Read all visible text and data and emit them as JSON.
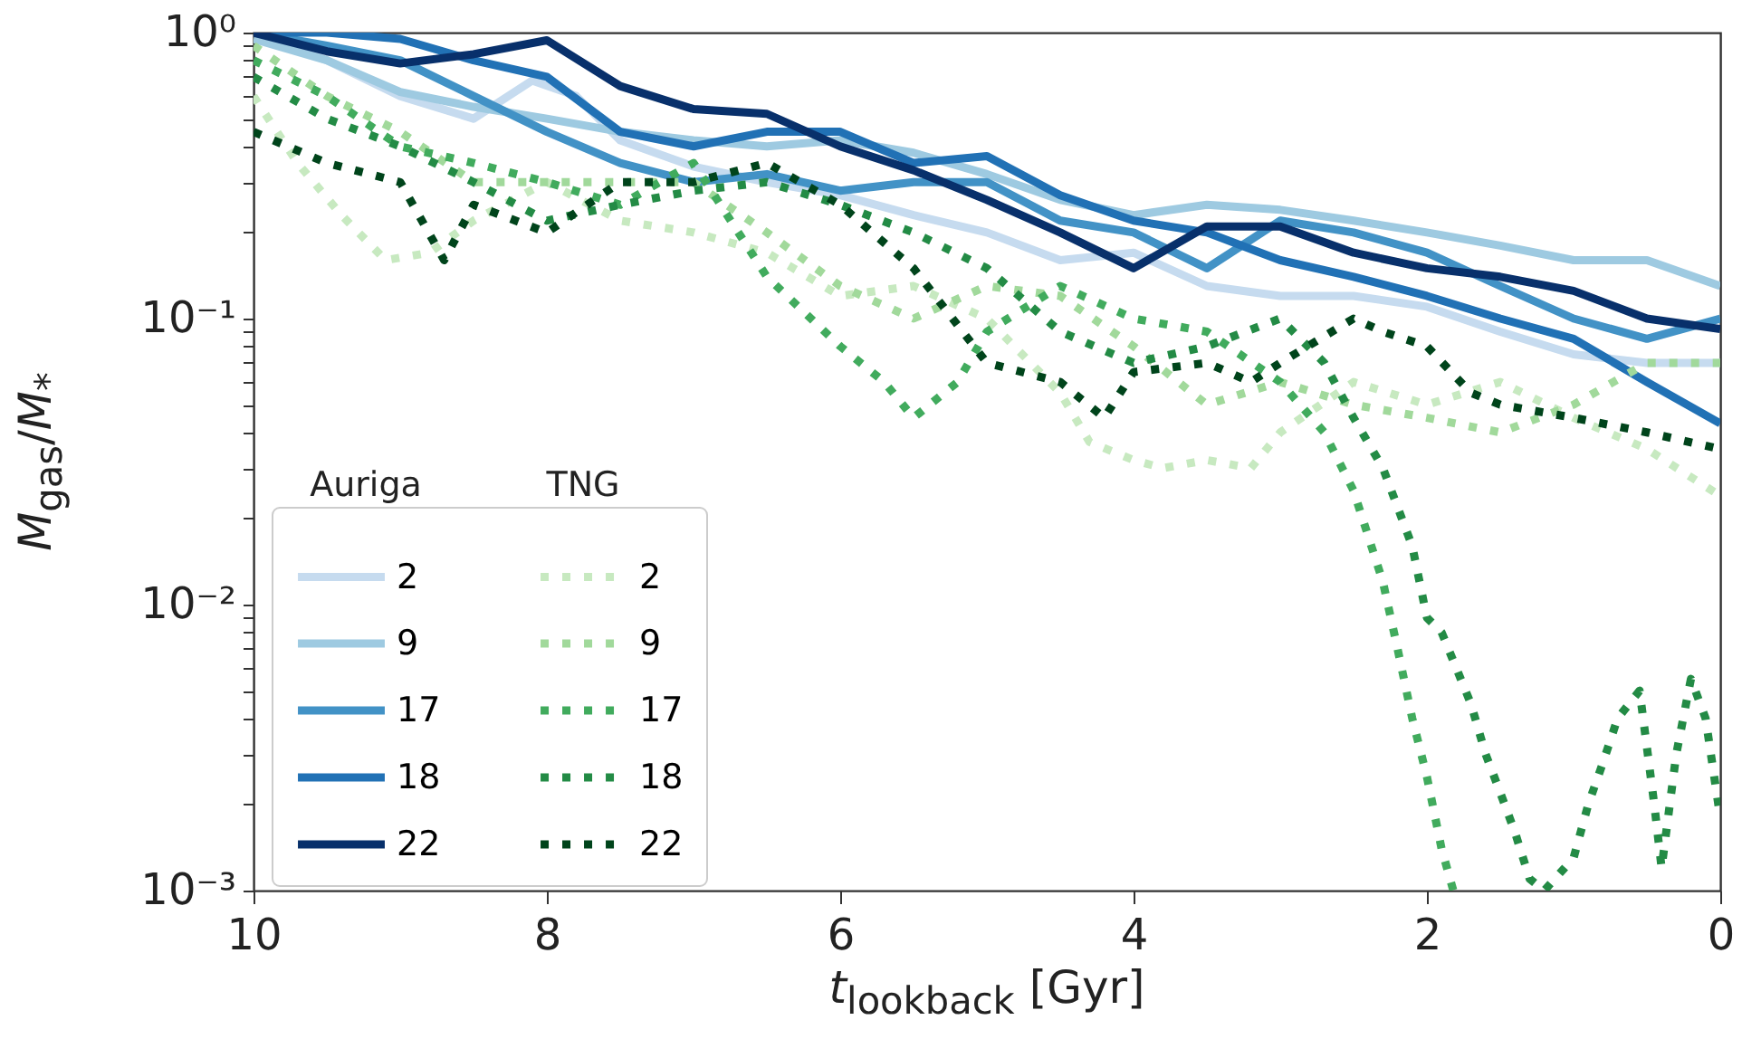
{
  "chart_data": {
    "type": "line",
    "xlabel": "t$_{lookback}$ [Gyr]",
    "ylabel": "M$_{gas}$/M$_{*}$",
    "log": "y",
    "xlim": [
      10,
      0
    ],
    "xticks": [
      10,
      8,
      6,
      4,
      2,
      0
    ],
    "ylim": [
      0.001,
      1
    ],
    "yticks": [
      {
        "value": 0.001,
        "label": "10⁻³"
      },
      {
        "value": 0.002,
        "label": null
      },
      {
        "value": 0.003,
        "label": null
      },
      {
        "value": 0.004,
        "label": null
      },
      {
        "value": 0.005,
        "label": null
      },
      {
        "value": 0.006,
        "label": null
      },
      {
        "value": 0.007,
        "label": null
      },
      {
        "value": 0.008,
        "label": null
      },
      {
        "value": 0.009,
        "label": null
      },
      {
        "value": 0.01,
        "label": "10⁻²"
      },
      {
        "value": 0.02,
        "label": null
      },
      {
        "value": 0.03,
        "label": null
      },
      {
        "value": 0.04,
        "label": null
      },
      {
        "value": 0.05,
        "label": null
      },
      {
        "value": 0.06,
        "label": null
      },
      {
        "value": 0.07,
        "label": null
      },
      {
        "value": 0.08,
        "label": null
      },
      {
        "value": 0.09,
        "label": null
      },
      {
        "value": 0.1,
        "label": "10⁻¹"
      },
      {
        "value": 0.2,
        "label": null
      },
      {
        "value": 0.3,
        "label": null
      },
      {
        "value": 0.4,
        "label": null
      },
      {
        "value": 0.5,
        "label": null
      },
      {
        "value": 0.6,
        "label": null
      },
      {
        "value": 0.7,
        "label": null
      },
      {
        "value": 0.8,
        "label": null
      },
      {
        "value": 0.9,
        "label": null
      },
      {
        "value": 1,
        "label": "10⁰"
      }
    ],
    "legend": "bottom left",
    "annotations": [
      "Auriga",
      "TNG"
    ],
    "series": [
      {
        "name": "2",
        "color": "#c6dbef",
        "line_style": "solid",
        "x": [
          10,
          9.5,
          9,
          8.5,
          8.1,
          7.8,
          7.5,
          7,
          6.5,
          6,
          5.5,
          5,
          4.5,
          4,
          3.5,
          3,
          2.5,
          2,
          1.5,
          1,
          0.5,
          0
        ],
        "values": [
          1,
          0.8,
          0.6,
          0.5,
          0.68,
          0.6,
          0.42,
          0.34,
          0.3,
          0.27,
          0.23,
          0.2,
          0.16,
          0.17,
          0.13,
          0.12,
          0.12,
          0.11,
          0.09,
          0.075,
          0.07,
          0.07
        ]
      },
      {
        "name": "9",
        "color": "#9ecae1",
        "line_style": "solid",
        "x": [
          10,
          9.5,
          9,
          8.5,
          8,
          7.5,
          7,
          6.5,
          6,
          5.5,
          5,
          4.5,
          4,
          3.5,
          3,
          2.5,
          2,
          1.5,
          1,
          0.5,
          0
        ],
        "values": [
          0.95,
          0.8,
          0.62,
          0.55,
          0.5,
          0.45,
          0.42,
          0.4,
          0.42,
          0.38,
          0.32,
          0.26,
          0.23,
          0.25,
          0.24,
          0.22,
          0.2,
          0.18,
          0.16,
          0.16,
          0.13
        ]
      },
      {
        "name": "17",
        "color": "#4292c6",
        "line_style": "solid",
        "x": [
          10,
          9.5,
          9,
          8.5,
          8,
          7.5,
          7,
          6.5,
          6,
          5.5,
          5,
          4.5,
          4,
          3.5,
          3,
          2.5,
          2,
          1.5,
          1,
          0.5,
          0
        ],
        "values": [
          1,
          0.9,
          0.8,
          0.6,
          0.45,
          0.35,
          0.3,
          0.32,
          0.28,
          0.3,
          0.3,
          0.22,
          0.2,
          0.15,
          0.22,
          0.2,
          0.17,
          0.13,
          0.1,
          0.085,
          0.1
        ]
      },
      {
        "name": "18",
        "color": "#2171b5",
        "line_style": "solid",
        "x": [
          10,
          9.5,
          9,
          8.5,
          8,
          7.5,
          7,
          6.5,
          6,
          5.5,
          5,
          4.5,
          4,
          3.5,
          3,
          2.5,
          2,
          1.5,
          1,
          0.5,
          0
        ],
        "values": [
          1,
          1,
          0.95,
          0.8,
          0.7,
          0.45,
          0.4,
          0.45,
          0.45,
          0.35,
          0.37,
          0.27,
          0.22,
          0.2,
          0.16,
          0.14,
          0.12,
          0.1,
          0.085,
          0.06,
          0.043
        ]
      },
      {
        "name": "22",
        "color": "#08306b",
        "line_style": "solid",
        "x": [
          10,
          9.5,
          9,
          8.5,
          8,
          7.5,
          7,
          6.5,
          6,
          5.5,
          5,
          4.5,
          4,
          3.5,
          3,
          2.5,
          2,
          1.5,
          1,
          0.5,
          0
        ],
        "values": [
          1,
          0.86,
          0.78,
          0.84,
          0.94,
          0.65,
          0.54,
          0.52,
          0.4,
          0.33,
          0.26,
          0.2,
          0.15,
          0.21,
          0.21,
          0.17,
          0.15,
          0.14,
          0.125,
          0.1,
          0.092
        ]
      },
      {
        "name": "2",
        "color": "#c7e9c0",
        "line_style": "dotted",
        "x": [
          10,
          9.7,
          9.4,
          9.1,
          8.8,
          8.5,
          8,
          7.5,
          7,
          6.5,
          6,
          5.5,
          5,
          4.5,
          4.3,
          4,
          3.8,
          3.5,
          3.2,
          3,
          2.5,
          2,
          1.5,
          1,
          0.5,
          0
        ],
        "values": [
          0.6,
          0.35,
          0.23,
          0.16,
          0.17,
          0.22,
          0.3,
          0.22,
          0.2,
          0.17,
          0.12,
          0.13,
          0.1,
          0.055,
          0.037,
          0.032,
          0.03,
          0.032,
          0.03,
          0.04,
          0.06,
          0.05,
          0.06,
          0.045,
          0.035,
          0.024
        ]
      },
      {
        "name": "9",
        "color": "#a1d99b",
        "line_style": "dotted",
        "x": [
          10,
          9.5,
          9,
          8.5,
          8,
          7.5,
          7,
          6.5,
          6,
          5.5,
          5,
          4.5,
          4,
          3.5,
          3,
          2.5,
          2,
          1.5,
          1,
          0.5,
          0
        ],
        "values": [
          0.9,
          0.6,
          0.45,
          0.3,
          0.3,
          0.3,
          0.3,
          0.2,
          0.13,
          0.1,
          0.13,
          0.12,
          0.08,
          0.05,
          0.06,
          0.05,
          0.045,
          0.04,
          0.05,
          0.07,
          0.07
        ]
      },
      {
        "name": "17",
        "color": "#41ab5d",
        "line_style": "dotted",
        "x": [
          10,
          9.5,
          9,
          8.5,
          8,
          7.5,
          7,
          6.5,
          6,
          5.7,
          5.5,
          5.2,
          5,
          4.5,
          4,
          3.5,
          3,
          2.7,
          2.5,
          2.3,
          2.2,
          2.1,
          2,
          1.9,
          1.82
        ],
        "values": [
          0.8,
          0.6,
          0.4,
          0.35,
          0.3,
          0.25,
          0.35,
          0.14,
          0.08,
          0.06,
          0.045,
          0.06,
          0.09,
          0.13,
          0.1,
          0.09,
          0.06,
          0.04,
          0.025,
          0.012,
          0.007,
          0.004,
          0.0025,
          0.0014,
          0.001
        ]
      },
      {
        "name": "18",
        "color": "#238b45",
        "line_style": "dotted",
        "x": [
          10,
          9.5,
          9,
          8.5,
          8,
          7.5,
          7,
          6.5,
          6,
          5.5,
          5,
          4.5,
          4,
          3.5,
          3,
          2.7,
          2.5,
          2.3,
          2.1,
          2,
          1.9,
          1.8,
          1.7,
          1.6,
          1.5,
          1.4,
          1.3,
          1.2,
          1,
          0.9,
          0.8,
          0.7,
          0.55,
          0.45,
          0.4,
          0.3,
          0.2,
          0.1,
          0
        ],
        "values": [
          0.7,
          0.5,
          0.4,
          0.3,
          0.22,
          0.25,
          0.28,
          0.3,
          0.25,
          0.2,
          0.15,
          0.09,
          0.07,
          0.08,
          0.1,
          0.07,
          0.045,
          0.03,
          0.016,
          0.009,
          0.008,
          0.006,
          0.0045,
          0.003,
          0.0022,
          0.0016,
          0.0011,
          0.001,
          0.0013,
          0.002,
          0.0028,
          0.004,
          0.005,
          0.002,
          0.0012,
          0.003,
          0.0055,
          0.004,
          0.0018
        ]
      },
      {
        "name": "22",
        "color": "#00441b",
        "line_style": "dotted",
        "x": [
          10,
          9.5,
          9,
          8.7,
          8.5,
          8,
          7.5,
          7,
          6.5,
          6,
          5.5,
          5,
          4.5,
          4.2,
          4,
          3.5,
          3.2,
          3,
          2.5,
          2.3,
          2,
          1.7,
          1.5,
          1,
          0.5,
          0
        ],
        "values": [
          0.45,
          0.35,
          0.3,
          0.16,
          0.25,
          0.2,
          0.3,
          0.3,
          0.35,
          0.25,
          0.15,
          0.07,
          0.06,
          0.045,
          0.065,
          0.07,
          0.06,
          0.07,
          0.1,
          0.09,
          0.08,
          0.055,
          0.05,
          0.045,
          0.04,
          0.035
        ]
      }
    ]
  }
}
